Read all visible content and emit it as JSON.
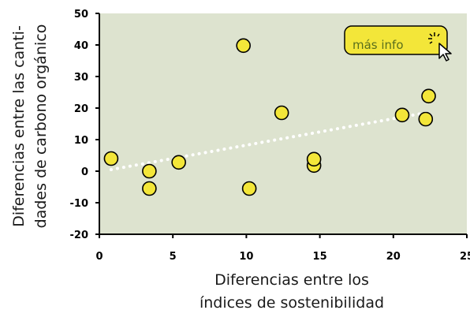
{
  "chart_data": {
    "type": "scatter",
    "xlabel_lines": [
      "Diferencias entre los",
      "índices de sostenibilidad"
    ],
    "ylabel_lines": [
      "Diferencias entre las canti-",
      "dades de carbono orgánico"
    ],
    "xlim": [
      0,
      25
    ],
    "ylim": [
      -20,
      50
    ],
    "xticks": [
      "0",
      "5",
      "10",
      "15",
      "20",
      "25"
    ],
    "yticks": [
      "-20",
      "-10",
      "0",
      "10",
      "20",
      "30",
      "40",
      "50"
    ],
    "points": [
      {
        "x": 0.8,
        "y": 4
      },
      {
        "x": 3.4,
        "y": 0
      },
      {
        "x": 3.4,
        "y": -5.5
      },
      {
        "x": 5.4,
        "y": 2.8
      },
      {
        "x": 9.8,
        "y": 39.8
      },
      {
        "x": 10.2,
        "y": -5.5
      },
      {
        "x": 12.4,
        "y": 18.5
      },
      {
        "x": 14.6,
        "y": 1.8
      },
      {
        "x": 14.6,
        "y": 3.8
      },
      {
        "x": 20.6,
        "y": 17.8
      },
      {
        "x": 22.2,
        "y": 16.5
      },
      {
        "x": 22.4,
        "y": 23.8
      }
    ],
    "trendline": {
      "x": [
        0.8,
        22.2
      ],
      "y": [
        0.5,
        18.5
      ]
    },
    "grid": false,
    "colors": {
      "plot_background": "#dde3cf",
      "point_fill": "#f3e639",
      "point_stroke": "#000000",
      "trendline": "#ffffff",
      "axis": "#000000"
    }
  },
  "info_button": {
    "label": "más info",
    "icon": "cursor-click-icon",
    "background": "#f3e639",
    "text_color": "#5a6f1c"
  }
}
